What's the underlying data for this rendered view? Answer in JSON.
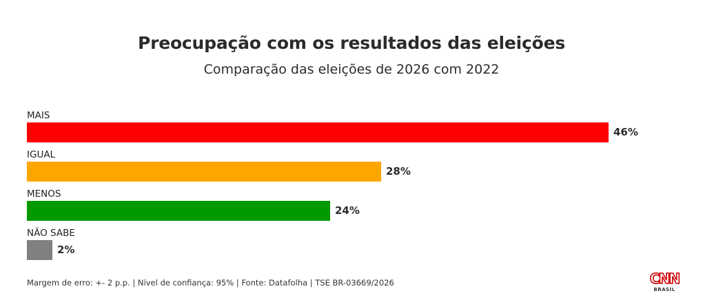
{
  "chart_data": {
    "type": "bar",
    "orientation": "horizontal",
    "title": "Preocupação com os resultados das eleições",
    "subtitle": "Comparação das eleições de 2026 com 2022",
    "categories": [
      "MAIS",
      "IGUAL",
      "MENOS",
      "NÃO SABE"
    ],
    "values": [
      46,
      28,
      24,
      2
    ],
    "value_labels": [
      "46%",
      "28%",
      "24%",
      "2%"
    ],
    "colors": [
      "#ff0000",
      "#ffa500",
      "#009900",
      "#808080"
    ],
    "xlim": [
      0,
      46
    ],
    "grid": false,
    "legend": "none"
  },
  "footer": {
    "note": "Margem de erro: +- 2 p.p. | Nível de confiança: 95% | Fonte: Datafolha | TSE BR-03669/2026"
  },
  "logo": {
    "brand": "CNN",
    "sub": "BRASIL",
    "color": "#cc0000"
  }
}
